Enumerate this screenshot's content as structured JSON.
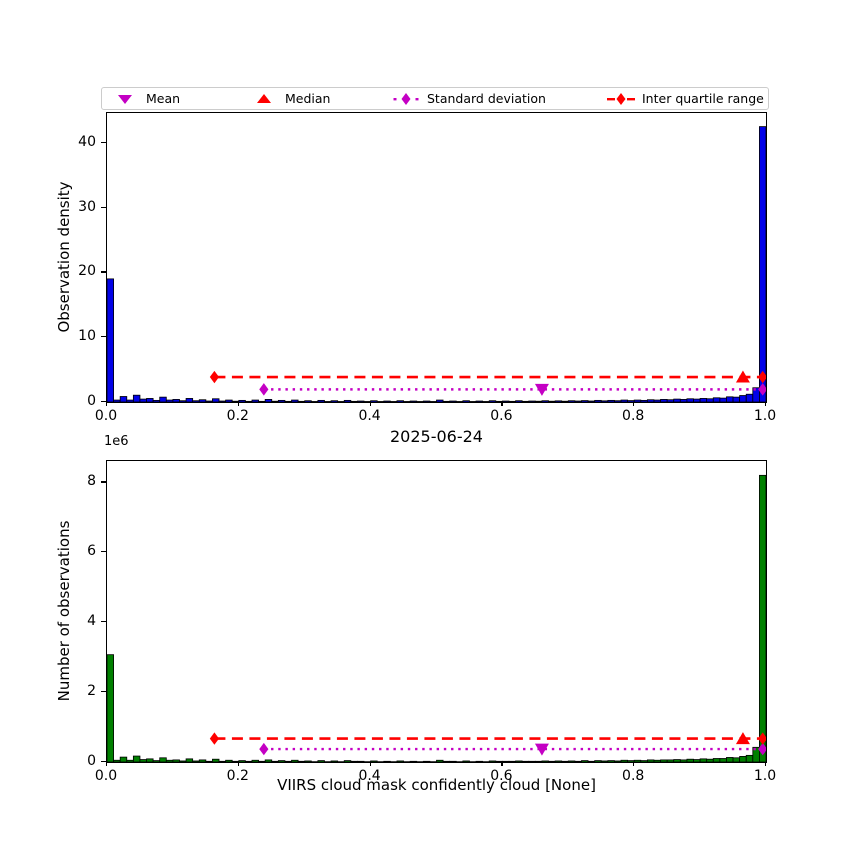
{
  "figure": {
    "title": "2025-06-24",
    "xlabel": "VIIRS cloud mask confidently cloud [None]",
    "offset_label": "1e6"
  },
  "legend": {
    "items": [
      {
        "label": "Mean",
        "marker": "triangle-down",
        "color": "#c400c4"
      },
      {
        "label": "Median",
        "marker": "triangle-up",
        "color": "#ff0000"
      },
      {
        "label": "Standard deviation",
        "marker": "diamond-dotted-line",
        "color": "#c400c4"
      },
      {
        "label": "Inter quartile range",
        "marker": "diamond-dashed-line",
        "color": "#ff0000"
      }
    ]
  },
  "colors": {
    "density_bars": "#0202e8",
    "count_bars": "#008000",
    "bar_edge": "#000000",
    "mean_std": "#c400c4",
    "median_iqr": "#ff0000"
  },
  "chart_data": [
    {
      "type": "bar",
      "title": "",
      "ylabel": "Observation density",
      "bar_color": "#0202e8",
      "bin_start": 0.0,
      "bin_width": 0.01,
      "xlim": [
        0,
        1
      ],
      "ylim": [
        0,
        44.6
      ],
      "yticks": [
        0,
        10,
        20,
        30,
        40
      ],
      "ytick_labels": [
        "0",
        "10",
        "20",
        "30",
        "40"
      ],
      "xticks": [
        0.0,
        0.2,
        0.4,
        0.6,
        0.8,
        1.0
      ],
      "xtick_labels": [
        "0.0",
        "0.2",
        "0.4",
        "0.6",
        "0.8",
        "1.0"
      ],
      "grid": false,
      "values": [
        19.0,
        0.3,
        0.85,
        0.3,
        1.05,
        0.45,
        0.55,
        0.25,
        0.75,
        0.3,
        0.4,
        0.2,
        0.55,
        0.2,
        0.35,
        0.15,
        0.5,
        0.15,
        0.3,
        0.12,
        0.25,
        0.1,
        0.3,
        0.1,
        0.4,
        0.12,
        0.25,
        0.1,
        0.3,
        0.1,
        0.2,
        0.08,
        0.25,
        0.08,
        0.2,
        0.08,
        0.25,
        0.1,
        0.15,
        0.08,
        0.2,
        0.08,
        0.15,
        0.08,
        0.2,
        0.08,
        0.15,
        0.08,
        0.15,
        0.08,
        0.3,
        0.1,
        0.15,
        0.08,
        0.2,
        0.08,
        0.15,
        0.08,
        0.2,
        0.1,
        0.15,
        0.1,
        0.2,
        0.1,
        0.15,
        0.12,
        0.2,
        0.12,
        0.18,
        0.12,
        0.2,
        0.15,
        0.22,
        0.15,
        0.25,
        0.18,
        0.25,
        0.2,
        0.3,
        0.22,
        0.3,
        0.25,
        0.35,
        0.3,
        0.4,
        0.35,
        0.45,
        0.4,
        0.5,
        0.45,
        0.55,
        0.5,
        0.65,
        0.6,
        0.8,
        0.75,
        1.0,
        1.2,
        2.2,
        42.5
      ],
      "stats": {
        "mean_x": 0.66,
        "median_x": 0.965,
        "std_line": {
          "x1": 0.238,
          "x2": 0.995,
          "y": 1.95
        },
        "iqr_line": {
          "x1": 0.163,
          "x2": 0.995,
          "y": 3.85
        }
      }
    },
    {
      "type": "bar",
      "title": "2025-06-24",
      "ylabel": "Number of observations",
      "xlabel": "VIIRS cloud mask confidently cloud [None]",
      "y_unit": "1e6",
      "bar_color": "#008000",
      "bin_start": 0.0,
      "bin_width": 0.01,
      "xlim": [
        0,
        1
      ],
      "ylim": [
        0,
        8.61
      ],
      "yticks": [
        0,
        2,
        4,
        6,
        8
      ],
      "ytick_labels": [
        "0",
        "2",
        "4",
        "6",
        "8"
      ],
      "xticks": [
        0.0,
        0.2,
        0.4,
        0.6,
        0.8,
        1.0
      ],
      "xtick_labels": [
        "0.0",
        "0.2",
        "0.4",
        "0.6",
        "0.8",
        "1.0"
      ],
      "grid": false,
      "values": [
        3.07,
        0.05,
        0.14,
        0.05,
        0.17,
        0.07,
        0.09,
        0.04,
        0.12,
        0.05,
        0.06,
        0.03,
        0.09,
        0.03,
        0.06,
        0.02,
        0.08,
        0.02,
        0.05,
        0.02,
        0.04,
        0.02,
        0.05,
        0.02,
        0.06,
        0.02,
        0.04,
        0.02,
        0.05,
        0.02,
        0.03,
        0.01,
        0.04,
        0.01,
        0.03,
        0.01,
        0.04,
        0.02,
        0.02,
        0.01,
        0.03,
        0.01,
        0.02,
        0.01,
        0.03,
        0.01,
        0.02,
        0.01,
        0.02,
        0.01,
        0.05,
        0.02,
        0.02,
        0.01,
        0.03,
        0.01,
        0.02,
        0.01,
        0.03,
        0.02,
        0.02,
        0.02,
        0.03,
        0.02,
        0.02,
        0.02,
        0.03,
        0.02,
        0.03,
        0.02,
        0.03,
        0.02,
        0.04,
        0.02,
        0.04,
        0.03,
        0.04,
        0.03,
        0.05,
        0.04,
        0.05,
        0.04,
        0.06,
        0.05,
        0.06,
        0.06,
        0.07,
        0.06,
        0.08,
        0.07,
        0.09,
        0.08,
        0.1,
        0.1,
        0.13,
        0.12,
        0.16,
        0.19,
        0.42,
        8.2
      ],
      "stats": {
        "mean_x": 0.66,
        "median_x": 0.965,
        "std_line": {
          "x1": 0.238,
          "x2": 0.995,
          "y": 0.37
        },
        "iqr_line": {
          "x1": 0.163,
          "x2": 0.995,
          "y": 0.67
        }
      }
    }
  ]
}
